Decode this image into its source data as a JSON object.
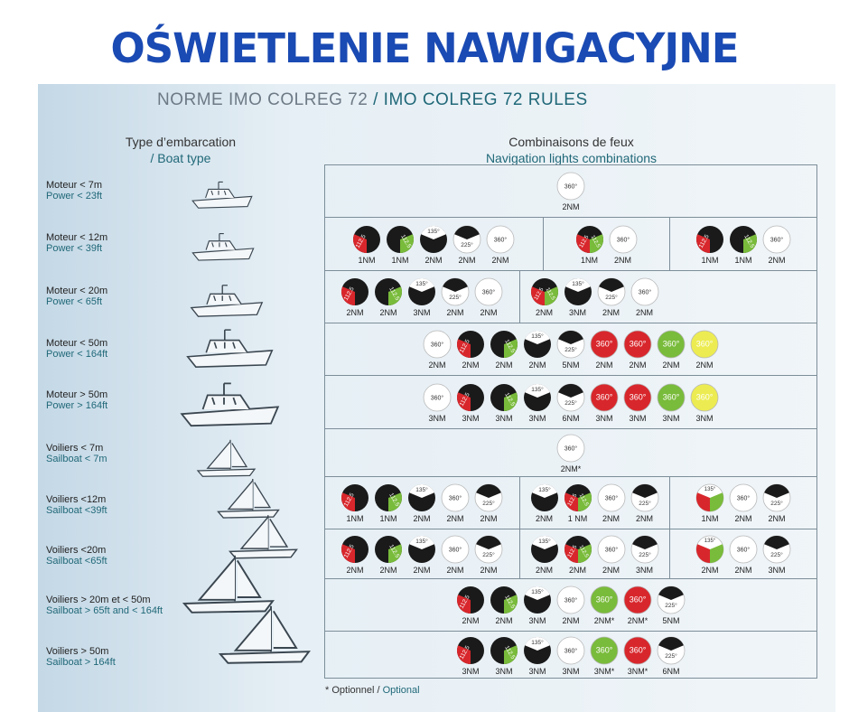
{
  "title": "OŚWIETLENIE NAWIGACYJNE",
  "subtitle": {
    "fr": "NORME IMO COLREG 72 ",
    "en": "/ IMO COLREG 72 RULES"
  },
  "columns": {
    "boat_type": {
      "fr": "Type d’embarcation",
      "en": "/ Boat type"
    },
    "lights": {
      "fr": "Combinaisons de feux",
      "en": "Navigation lights combinations"
    }
  },
  "boats": [
    {
      "fr": "Moteur < 7m",
      "en": "Power < 23ft",
      "icon": "motorboat-small-icon"
    },
    {
      "fr": "Moteur < 12m",
      "en": "Power < 39ft",
      "icon": "motorboat-small-icon"
    },
    {
      "fr": "Moteur < 20m",
      "en": "Power < 65ft",
      "icon": "motorboat-medium-icon"
    },
    {
      "fr": "Moteur < 50m",
      "en": "Power < 164ft",
      "icon": "motorboat-large-icon"
    },
    {
      "fr": "Moteur > 50m",
      "en": "Power > 164ft",
      "icon": "motorboat-large-icon"
    },
    {
      "fr": "Voiliers < 7m",
      "en": "Sailboat < 7m",
      "icon": "sailboat-icon"
    },
    {
      "fr": "Voiliers <12m",
      "en": "Sailboat <39ft",
      "icon": "sailboat-icon"
    },
    {
      "fr": "Voiliers <20m",
      "en": "Sailboat <65ft",
      "icon": "sailboat-icon"
    },
    {
      "fr": "Voiliers > 20m et < 50m",
      "en": "Sailboat > 65ft and < 164ft",
      "icon": "sailboat-icon"
    },
    {
      "fr": "Voiliers > 50m",
      "en": "Sailboat > 164ft",
      "icon": "sailboat-icon"
    }
  ],
  "light_types": {
    "W360": {
      "label": "360°",
      "desc": "white all-round light"
    },
    "R360": {
      "label": "360°",
      "desc": "red all-round light"
    },
    "G360": {
      "label": "360°",
      "desc": "green all-round light"
    },
    "Y360": {
      "label": "360°",
      "desc": "yellow all-round light"
    },
    "SIDE": {
      "label": "112.5",
      "desc": "red and green sidelights"
    },
    "PORT": {
      "label": "112.5",
      "desc": "red port sidelight"
    },
    "STBD": {
      "label": "112.5",
      "desc": "green starboard sidelight"
    },
    "TRI": {
      "label": "112.5",
      "desc": "tricolour light"
    },
    "MAST": {
      "label": "135°",
      "desc": "masthead light"
    },
    "STERN": {
      "label": "225°",
      "desc": "stern light"
    }
  },
  "rows": [
    [
      [
        {
          "t": "W360",
          "r": "2NM"
        }
      ]
    ],
    [
      [
        {
          "t": "PORT",
          "r": "1NM"
        },
        {
          "t": "STBD",
          "r": "1NM"
        },
        {
          "t": "MAST",
          "r": "2NM"
        },
        {
          "t": "STERN",
          "r": "2NM"
        },
        {
          "t": "W360",
          "r": "2NM"
        }
      ],
      [
        {
          "t": "SIDE",
          "r": "1NM"
        },
        {
          "t": "W360",
          "r": "2NM"
        }
      ],
      [
        {
          "t": "PORT",
          "r": "1NM"
        },
        {
          "t": "STBD",
          "r": "1NM"
        },
        {
          "t": "W360",
          "r": "2NM"
        }
      ]
    ],
    [
      [
        {
          "t": "PORT",
          "r": "2NM"
        },
        {
          "t": "STBD",
          "r": "2NM"
        },
        {
          "t": "MAST",
          "r": "3NM"
        },
        {
          "t": "STERN",
          "r": "2NM"
        },
        {
          "t": "W360",
          "r": "2NM"
        }
      ],
      [
        {
          "t": "SIDE",
          "r": "2NM"
        },
        {
          "t": "MAST",
          "r": "3NM"
        },
        {
          "t": "STERN",
          "r": "2NM"
        },
        {
          "t": "W360",
          "r": "2NM"
        }
      ]
    ],
    [
      [
        {
          "t": "W360",
          "r": "2NM"
        },
        {
          "t": "PORT",
          "r": "2NM"
        },
        {
          "t": "STBD",
          "r": "2NM"
        },
        {
          "t": "MAST",
          "r": "2NM"
        },
        {
          "t": "STERN",
          "r": "5NM"
        },
        {
          "t": "R360",
          "r": "2NM"
        },
        {
          "t": "R360",
          "r": "2NM"
        },
        {
          "t": "G360",
          "r": "2NM"
        },
        {
          "t": "Y360",
          "r": "2NM"
        }
      ]
    ],
    [
      [
        {
          "t": "W360",
          "r": "3NM"
        },
        {
          "t": "PORT",
          "r": "3NM"
        },
        {
          "t": "STBD",
          "r": "3NM"
        },
        {
          "t": "MAST",
          "r": "3NM"
        },
        {
          "t": "STERN",
          "r": "6NM"
        },
        {
          "t": "R360",
          "r": "3NM"
        },
        {
          "t": "R360",
          "r": "3NM"
        },
        {
          "t": "G360",
          "r": "3NM"
        },
        {
          "t": "Y360",
          "r": "3NM"
        }
      ]
    ],
    [
      [
        {
          "t": "W360",
          "r": "2NM*"
        }
      ]
    ],
    [
      [
        {
          "t": "PORT",
          "r": "1NM"
        },
        {
          "t": "STBD",
          "r": "1NM"
        },
        {
          "t": "MAST",
          "r": "2NM"
        },
        {
          "t": "W360",
          "r": "2NM"
        },
        {
          "t": "STERN",
          "r": "2NM"
        }
      ],
      [
        {
          "t": "MAST",
          "r": "2NM"
        },
        {
          "t": "SIDE",
          "r": "1 NM"
        },
        {
          "t": "W360",
          "r": "2NM"
        },
        {
          "t": "STERN",
          "r": "2NM"
        }
      ],
      [
        {
          "t": "TRI",
          "r": "1NM"
        },
        {
          "t": "W360",
          "r": "2NM"
        },
        {
          "t": "STERN",
          "r": "2NM"
        }
      ]
    ],
    [
      [
        {
          "t": "PORT",
          "r": "2NM"
        },
        {
          "t": "STBD",
          "r": "2NM"
        },
        {
          "t": "MAST",
          "r": "2NM"
        },
        {
          "t": "W360",
          "r": "2NM"
        },
        {
          "t": "STERN",
          "r": "2NM"
        }
      ],
      [
        {
          "t": "MAST",
          "r": "2NM"
        },
        {
          "t": "SIDE",
          "r": "2NM"
        },
        {
          "t": "W360",
          "r": "2NM"
        },
        {
          "t": "STERN",
          "r": "3NM"
        }
      ],
      [
        {
          "t": "TRI",
          "r": "2NM"
        },
        {
          "t": "W360",
          "r": "2NM"
        },
        {
          "t": "STERN",
          "r": "3NM"
        }
      ]
    ],
    [
      [
        {
          "t": "PORT",
          "r": "2NM"
        },
        {
          "t": "STBD",
          "r": "2NM"
        },
        {
          "t": "MAST",
          "r": "3NM"
        },
        {
          "t": "W360",
          "r": "2NM"
        },
        {
          "t": "G360",
          "r": "2NM*"
        },
        {
          "t": "R360",
          "r": "2NM*"
        },
        {
          "t": "STERN",
          "r": "5NM"
        }
      ]
    ],
    [
      [
        {
          "t": "PORT",
          "r": "3NM"
        },
        {
          "t": "STBD",
          "r": "3NM"
        },
        {
          "t": "MAST",
          "r": "3NM"
        },
        {
          "t": "W360",
          "r": "3NM"
        },
        {
          "t": "G360",
          "r": "3NM*"
        },
        {
          "t": "R360",
          "r": "3NM*"
        },
        {
          "t": "STERN",
          "r": "6NM"
        }
      ]
    ]
  ],
  "footnote": {
    "fr": "* Optionnel / ",
    "en": "Optional"
  }
}
